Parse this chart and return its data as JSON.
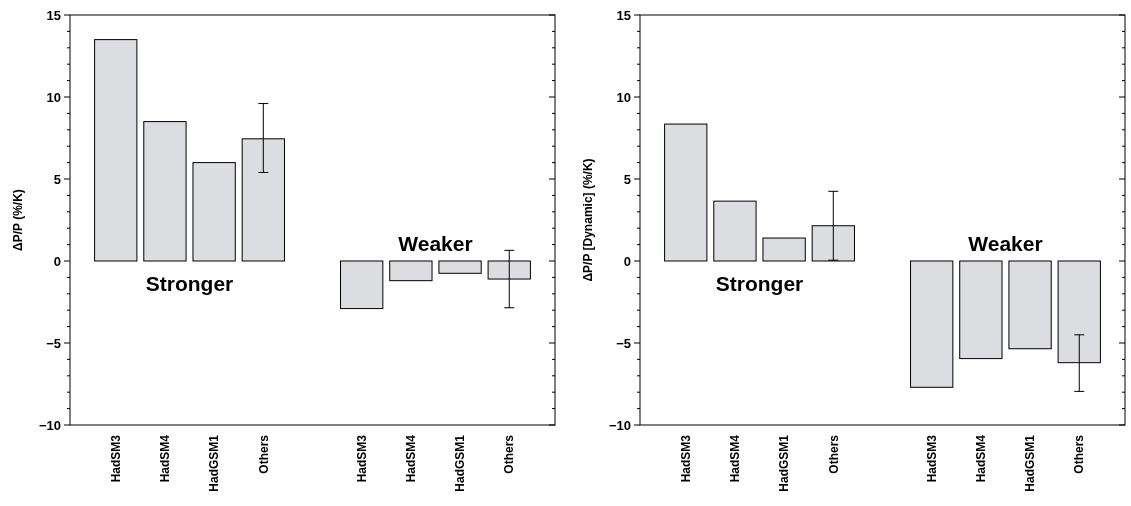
{
  "chart_data": [
    {
      "type": "bar",
      "ylabel": "ΔP/P (%/K)",
      "categories": [
        "HadSM3",
        "HadSM4",
        "HadGSM1",
        "Others",
        null,
        "HadSM3",
        "HadSM4",
        "HadGSM1",
        "Others"
      ],
      "series": [
        {
          "color": "#dcdde0",
          "values": [
            13.5,
            8.5,
            6.0,
            7.45,
            null,
            -2.9,
            -1.2,
            -0.75,
            -1.1
          ],
          "errors": [
            null,
            null,
            null,
            [
              5.4,
              9.6
            ],
            null,
            null,
            null,
            null,
            [
              -2.85,
              0.65
            ]
          ]
        }
      ],
      "ylim": [
        -10,
        15
      ],
      "yticks": [
        -10,
        {
          "value": -9,
          "label": null
        },
        {
          "value": -8,
          "label": null
        },
        {
          "value": -7,
          "label": null
        },
        {
          "value": -6,
          "label": null
        },
        -5,
        {
          "value": -4,
          "label": null
        },
        {
          "value": -3,
          "label": null
        },
        {
          "value": -2,
          "label": null
        },
        {
          "value": -1,
          "label": null
        },
        0,
        {
          "value": 1,
          "label": null
        },
        {
          "value": 2,
          "label": null
        },
        {
          "value": 3,
          "label": null
        },
        {
          "value": 4,
          "label": null
        },
        5,
        {
          "value": 6,
          "label": null
        },
        {
          "value": 7,
          "label": null
        },
        {
          "value": 8,
          "label": null
        },
        {
          "value": 9,
          "label": null
        },
        10,
        {
          "value": 11,
          "label": null
        },
        {
          "value": 12,
          "label": null
        },
        {
          "value": 13,
          "label": null
        },
        {
          "value": 14,
          "label": null
        },
        15
      ],
      "annotations": [
        "Stronger",
        "Weaker"
      ],
      "grid": false
    },
    {
      "type": "bar",
      "ylabel": "ΔP/P [Dynamic] (%/K)",
      "categories": [
        "HadSM3",
        "HadSM4",
        "HadGSM1",
        "Others",
        null,
        "HadSM3",
        "HadSM4",
        "HadGSM1",
        "Others"
      ],
      "series": [
        {
          "color": "#dcdde0",
          "values": [
            8.35,
            3.65,
            1.4,
            2.15,
            null,
            -7.7,
            -5.95,
            -5.35,
            -6.2
          ],
          "errors": [
            null,
            null,
            null,
            [
              0.05,
              4.25
            ],
            null,
            null,
            null,
            null,
            [
              -7.95,
              -4.5
            ]
          ]
        }
      ],
      "ylim": [
        -10,
        15
      ],
      "yticks": [
        -10,
        {
          "value": -9,
          "label": null
        },
        {
          "value": -8,
          "label": null
        },
        {
          "value": -7,
          "label": null
        },
        {
          "value": -6,
          "label": null
        },
        -5,
        {
          "value": -4,
          "label": null
        },
        {
          "value": -3,
          "label": null
        },
        {
          "value": -2,
          "label": null
        },
        {
          "value": -1,
          "label": null
        },
        0,
        {
          "value": 1,
          "label": null
        },
        {
          "value": 2,
          "label": null
        },
        {
          "value": 3,
          "label": null
        },
        {
          "value": 4,
          "label": null
        },
        5,
        {
          "value": 6,
          "label": null
        },
        {
          "value": 7,
          "label": null
        },
        {
          "value": 8,
          "label": null
        },
        {
          "value": 9,
          "label": null
        },
        10,
        {
          "value": 11,
          "label": null
        },
        {
          "value": 12,
          "label": null
        },
        {
          "value": 13,
          "label": null
        },
        {
          "value": 14,
          "label": null
        },
        15
      ],
      "annotations": [
        "Stronger",
        "Weaker"
      ],
      "grid": false
    }
  ]
}
